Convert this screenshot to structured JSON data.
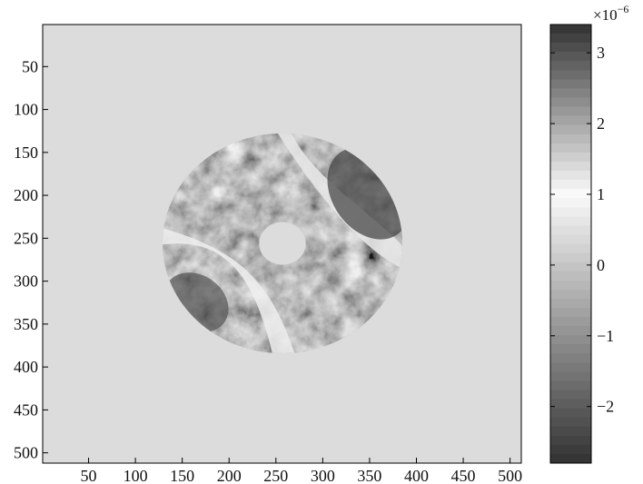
{
  "chart_data": {
    "type": "heatmap",
    "title": "",
    "xlabel": "",
    "ylabel": "",
    "x_range": [
      1,
      512
    ],
    "y_range": [
      1,
      512
    ],
    "y_axis_direction": "top-to-bottom",
    "x_ticks": [
      50,
      100,
      150,
      200,
      250,
      300,
      350,
      400,
      450,
      500
    ],
    "y_ticks": [
      50,
      100,
      150,
      200,
      250,
      300,
      350,
      400,
      450,
      500
    ],
    "background_value": 0,
    "colormap": "gray (dark = high and low extremes shown in dark/light steps)",
    "colorbar": {
      "range": [
        -2.8,
        3.4
      ],
      "ticks": [
        3,
        2,
        1,
        0,
        -1,
        -2
      ],
      "tick_labels": [
        "3",
        "2",
        "1",
        "0",
        "−1",
        "−2"
      ],
      "exponent_label": "×10",
      "exponent_superscript": "−6"
    },
    "annulus": {
      "center": [
        257,
        256
      ],
      "outer_radius": 128,
      "inner_radius": 25,
      "description_values": "grayscale field within annulus"
    },
    "grid": false,
    "legend": "none"
  }
}
